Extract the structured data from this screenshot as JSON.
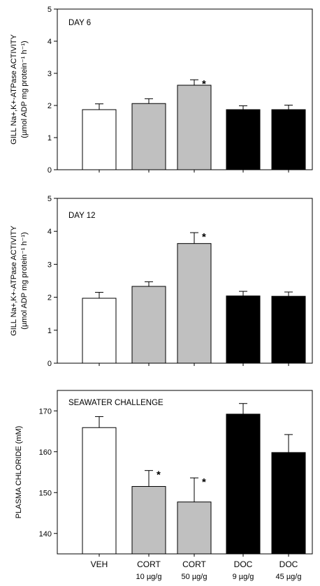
{
  "chart_data": [
    {
      "type": "bar",
      "title": "DAY 6",
      "ylabel_line1": "GILL Na+,K+-ATPase ACTIVITY",
      "ylabel_line2": "(µmol ADP  mg protein⁻¹  h⁻¹)",
      "ylim": [
        0,
        5
      ],
      "yticks": [
        0,
        1,
        2,
        3,
        4,
        5
      ],
      "frame": "box",
      "grid": false,
      "categories": [
        "VEH",
        "CORT 10 µg/g",
        "CORT 50 µg/g",
        "DOC 9 µg/g",
        "DOC 45 µg/g"
      ],
      "values": [
        1.87,
        2.06,
        2.63,
        1.87,
        1.87
      ],
      "errors": [
        0.18,
        0.15,
        0.17,
        0.12,
        0.14
      ],
      "significant": [
        false,
        false,
        true,
        false,
        false
      ],
      "bar_colors": [
        "#ffffff",
        "#c0c0c0",
        "#c0c0c0",
        "#000000",
        "#000000"
      ]
    },
    {
      "type": "bar",
      "title": "DAY 12",
      "ylabel_line1": "GILL Na+,K+-ATPase ACTIVITY",
      "ylabel_line2": "(µmol ADP  mg protein⁻¹  h⁻¹)",
      "ylim": [
        0,
        5
      ],
      "yticks": [
        0,
        1,
        2,
        3,
        4,
        5
      ],
      "frame": "box",
      "grid": false,
      "categories": [
        "VEH",
        "CORT 10 µg/g",
        "CORT 50 µg/g",
        "DOC 9 µg/g",
        "DOC 45 µg/g"
      ],
      "values": [
        1.97,
        2.33,
        3.63,
        2.04,
        2.03
      ],
      "errors": [
        0.18,
        0.14,
        0.33,
        0.14,
        0.13
      ],
      "significant": [
        false,
        false,
        true,
        false,
        false
      ],
      "bar_colors": [
        "#ffffff",
        "#c0c0c0",
        "#c0c0c0",
        "#000000",
        "#000000"
      ]
    },
    {
      "type": "bar",
      "title": "SEAWATER CHALLENGE",
      "ylabel": "PLASMA CHLORIDE (mM)",
      "ylim": [
        135,
        175
      ],
      "yticks": [
        140,
        150,
        160,
        170
      ],
      "frame": "box",
      "grid": false,
      "categories": [
        "VEH",
        "CORT 10 µg/g",
        "CORT 50 µg/g",
        "DOC 9 µg/g",
        "DOC 45 µg/g"
      ],
      "values": [
        165.9,
        151.5,
        147.7,
        169.2,
        159.8
      ],
      "errors": [
        2.7,
        3.9,
        5.9,
        2.6,
        4.4
      ],
      "significant": [
        false,
        true,
        true,
        false,
        false
      ],
      "bar_colors": [
        "#ffffff",
        "#c0c0c0",
        "#c0c0c0",
        "#000000",
        "#000000"
      ]
    }
  ],
  "x_axis": {
    "labels": [
      {
        "main": "VEH",
        "sub": ""
      },
      {
        "main": "CORT",
        "sub": "10 µg/g"
      },
      {
        "main": "CORT",
        "sub": "50 µg/g"
      },
      {
        "main": "DOC",
        "sub": "9 µg/g"
      },
      {
        "main": "DOC",
        "sub": "45 µg/g"
      }
    ]
  },
  "significance_marker": "*"
}
